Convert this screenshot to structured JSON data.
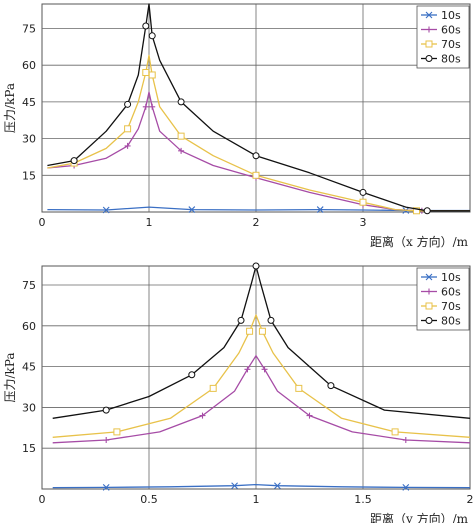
{
  "chart_data": [
    {
      "type": "line",
      "ylabel": "压力/kPa",
      "xlabel": "距离（x 方向）/m",
      "xlim": [
        0,
        4
      ],
      "ylim": [
        0,
        85
      ],
      "xticks": [
        "0",
        "1",
        "2",
        "3"
      ],
      "yticks": [
        "15",
        "30",
        "45",
        "60",
        "75"
      ],
      "grid": true,
      "legend": "top-right",
      "series": [
        {
          "name": "10s",
          "color": "#3a6fc4",
          "marker": "x",
          "x": [
            0.05,
            0.6,
            1.0,
            1.4,
            2.0,
            2.6,
            3.0,
            3.4,
            4.0
          ],
          "y": [
            1,
            0.8,
            2,
            1,
            0.8,
            1,
            0.8,
            0.6,
            0.6
          ]
        },
        {
          "name": "60s",
          "color": "#a64ca6",
          "marker": "+",
          "x": [
            0.05,
            0.3,
            0.6,
            0.8,
            0.9,
            0.97,
            1.0,
            1.03,
            1.1,
            1.3,
            1.6,
            2.0,
            2.5,
            3.0,
            3.3,
            3.55,
            4.0
          ],
          "y": [
            18,
            19,
            22,
            27,
            34,
            43,
            49,
            43,
            33,
            25,
            19,
            14,
            8,
            3,
            1,
            0.5,
            0.5
          ]
        },
        {
          "name": "70s",
          "color": "#e8c24a",
          "marker": "square",
          "x": [
            0.05,
            0.3,
            0.6,
            0.8,
            0.9,
            0.97,
            1.0,
            1.03,
            1.1,
            1.3,
            1.6,
            2.0,
            2.5,
            3.0,
            3.3,
            3.5,
            4.0
          ],
          "y": [
            18,
            20,
            26,
            34,
            45,
            57,
            64,
            56,
            43,
            31,
            23,
            15,
            9,
            4,
            1,
            0.5,
            0.5
          ]
        },
        {
          "name": "80s",
          "color": "#111111",
          "marker": "circle",
          "x": [
            0.05,
            0.3,
            0.6,
            0.8,
            0.9,
            0.97,
            1.0,
            1.03,
            1.1,
            1.3,
            1.6,
            2.0,
            2.5,
            3.0,
            3.4,
            3.6,
            4.0
          ],
          "y": [
            19,
            21,
            33,
            44,
            56,
            76,
            85,
            72,
            62,
            45,
            33,
            23,
            16,
            8,
            2,
            0.5,
            0.5
          ]
        }
      ]
    },
    {
      "type": "line",
      "ylabel": "压力/kPa",
      "xlabel": "距离（y 方向）/m",
      "xlim": [
        0,
        2
      ],
      "ylim": [
        0,
        82
      ],
      "xticks": [
        "0",
        "0.5",
        "1",
        "1.5",
        "2"
      ],
      "yticks": [
        "15",
        "30",
        "45",
        "60",
        "75"
      ],
      "grid": true,
      "legend": "top-right",
      "series": [
        {
          "name": "10s",
          "color": "#3a6fc4",
          "marker": "x",
          "x": [
            0.05,
            0.3,
            0.6,
            0.9,
            1.0,
            1.1,
            1.4,
            1.7,
            2.0
          ],
          "y": [
            0.5,
            0.6,
            0.8,
            1.2,
            1.6,
            1.2,
            0.8,
            0.6,
            0.5
          ]
        },
        {
          "name": "60s",
          "color": "#a64ca6",
          "marker": "+",
          "x": [
            0.05,
            0.3,
            0.55,
            0.75,
            0.9,
            0.96,
            1.0,
            1.04,
            1.1,
            1.25,
            1.45,
            1.7,
            2.0
          ],
          "y": [
            17,
            18,
            21,
            27,
            36,
            44,
            49,
            44,
            36,
            27,
            21,
            18,
            17
          ]
        },
        {
          "name": "70s",
          "color": "#e8c24a",
          "marker": "square",
          "x": [
            0.05,
            0.35,
            0.6,
            0.8,
            0.92,
            0.97,
            1.0,
            1.03,
            1.08,
            1.2,
            1.4,
            1.65,
            2.0
          ],
          "y": [
            19,
            21,
            26,
            37,
            50,
            58,
            64,
            58,
            50,
            37,
            26,
            21,
            19
          ]
        },
        {
          "name": "80s",
          "color": "#111111",
          "marker": "circle",
          "x": [
            0.05,
            0.3,
            0.5,
            0.7,
            0.85,
            0.93,
            0.98,
            1.0,
            1.02,
            1.07,
            1.15,
            1.35,
            1.6,
            2.0
          ],
          "y": [
            26,
            29,
            34,
            42,
            52,
            62,
            76,
            82,
            76,
            62,
            52,
            38,
            29,
            26
          ]
        }
      ]
    }
  ]
}
